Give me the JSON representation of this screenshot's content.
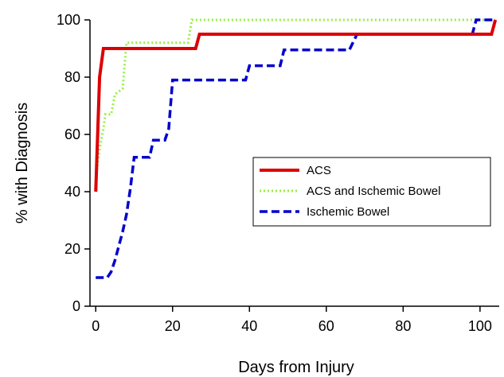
{
  "chart_data": {
    "type": "line",
    "title": "",
    "xlabel": "Days from Injury",
    "ylabel": "% with Diagnosis",
    "xlim": [
      -1.5,
      105
    ],
    "ylim": [
      0,
      100
    ],
    "x_ticks": [
      0,
      20,
      40,
      60,
      80,
      100
    ],
    "y_ticks": [
      0,
      20,
      40,
      60,
      80,
      100
    ],
    "grid": false,
    "legend_position": "center-right",
    "series": [
      {
        "name": "ACS",
        "color": "#dd0000",
        "style": "solid",
        "points": [
          [
            0,
            40
          ],
          [
            1,
            80
          ],
          [
            2,
            90
          ],
          [
            26,
            90
          ],
          [
            27,
            95
          ],
          [
            103,
            95
          ],
          [
            104,
            100
          ]
        ]
      },
      {
        "name": "ACS and Ischemic Bowel",
        "color": "#99ee44",
        "style": "dotted",
        "points": [
          [
            0,
            42
          ],
          [
            0.5,
            50
          ],
          [
            1,
            55
          ],
          [
            2,
            62
          ],
          [
            2.5,
            67
          ],
          [
            4,
            67
          ],
          [
            5,
            74
          ],
          [
            6,
            75
          ],
          [
            7,
            76
          ],
          [
            8,
            92
          ],
          [
            24,
            92
          ],
          [
            25,
            100
          ],
          [
            104,
            100
          ]
        ]
      },
      {
        "name": "Ischemic Bowel",
        "color": "#0000cc",
        "style": "dashed",
        "points": [
          [
            0,
            10
          ],
          [
            3,
            10
          ],
          [
            4,
            12
          ],
          [
            5,
            16
          ],
          [
            6,
            21
          ],
          [
            7,
            26
          ],
          [
            8,
            32
          ],
          [
            9,
            41
          ],
          [
            10,
            52
          ],
          [
            14,
            52
          ],
          [
            15,
            58
          ],
          [
            18,
            58
          ],
          [
            19,
            62
          ],
          [
            20,
            79
          ],
          [
            39,
            79
          ],
          [
            40,
            84
          ],
          [
            48,
            84
          ],
          [
            49,
            89.5
          ],
          [
            66,
            89.5
          ],
          [
            68,
            95
          ],
          [
            98,
            95
          ],
          [
            99,
            100
          ],
          [
            104,
            100
          ]
        ]
      }
    ]
  }
}
